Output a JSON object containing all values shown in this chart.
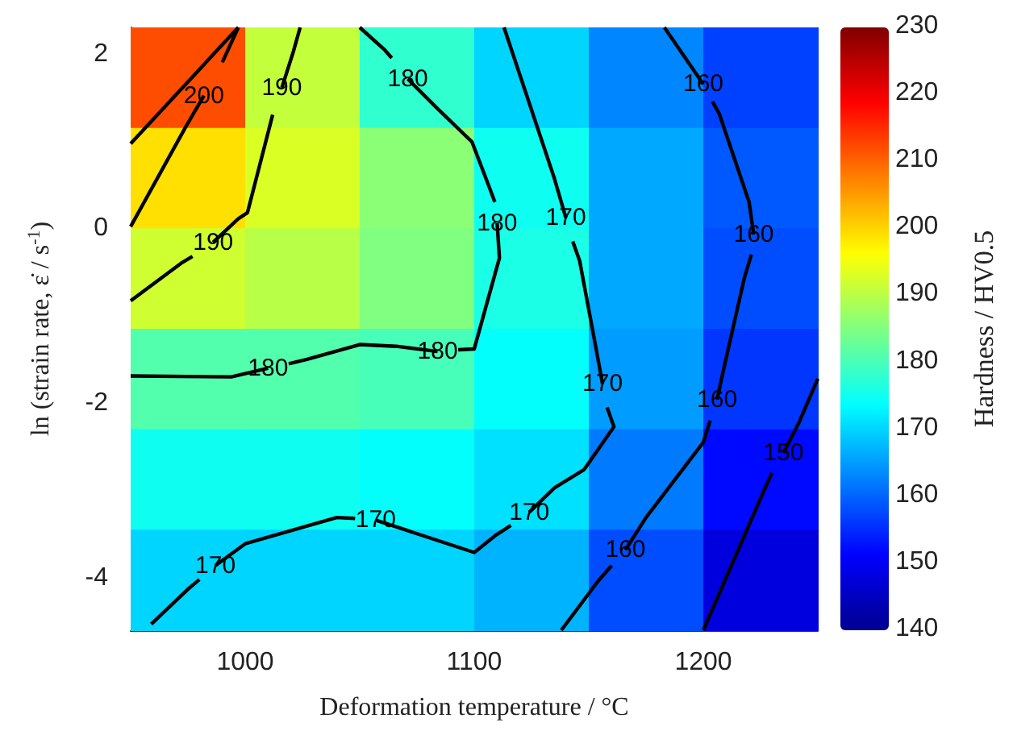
{
  "chart_data": {
    "type": "heatmap",
    "xlabel": "Deformation temperature / °C",
    "ylabel": "ln (strain rate, ε̇ / s$^{-1}$)",
    "clabel": "Hardness / HV0.5",
    "x": [
      975,
      1025,
      1075,
      1125,
      1175,
      1225
    ],
    "y": [
      1.725,
      0.575,
      -0.575,
      -1.725,
      -2.875,
      -4.025
    ],
    "cells": [
      [
        212,
        191,
        178,
        170,
        163,
        157
      ],
      [
        199,
        193,
        186,
        175,
        166,
        159
      ],
      [
        192,
        190,
        185,
        176,
        166,
        158
      ],
      [
        181,
        181,
        180,
        174,
        165,
        156
      ],
      [
        175,
        175,
        174,
        171,
        162,
        152
      ],
      [
        170,
        170,
        170,
        167,
        158,
        148
      ]
    ],
    "xlim": [
      950,
      1250
    ],
    "xticks": [
      1000,
      1100,
      1200
    ],
    "ylim": [
      -4.6,
      2.3
    ],
    "yticks": [
      -4,
      -2,
      0,
      2
    ],
    "clim": [
      140,
      230
    ],
    "cticks": [
      140,
      150,
      160,
      170,
      180,
      190,
      200,
      210,
      220,
      230
    ],
    "marker": "none",
    "series": [
      {
        "type": "line",
        "color": "#000000",
        "x": [
          950,
          997
        ],
        "values": [
          0.97,
          2.3
        ],
        "value_labels": [
          null,
          null
        ]
      },
      {
        "type": "line",
        "name": "200",
        "color": "#000000",
        "x": [
          950,
          974,
          982
        ],
        "values": [
          0.02,
          1.16,
          1.52
        ]
      },
      {
        "type": "line",
        "color": "#000000",
        "x": [
          990,
          997
        ],
        "values": [
          1.9,
          2.3
        ]
      },
      {
        "type": "line",
        "name": "190",
        "color": "#000000",
        "x": [
          1024,
          1021,
          1016
        ],
        "values": [
          2.3,
          2.02,
          1.61
        ]
      },
      {
        "type": "line",
        "name": "190",
        "color": "#000000",
        "x": [
          1012,
          1001,
          997,
          986
        ],
        "values": [
          1.3,
          0.18,
          0.11,
          -0.16
        ]
      },
      {
        "type": "line",
        "color": "#000000",
        "x": [
          977,
          972,
          950
        ],
        "values": [
          -0.32,
          -0.4,
          -0.83
        ]
      },
      {
        "type": "line",
        "name": "180",
        "color": "#000000",
        "x": [
          950,
          994,
          1010
        ],
        "values": [
          -1.69,
          -1.7,
          -1.6
        ]
      },
      {
        "type": "line",
        "name": "180",
        "color": "#000000",
        "x": [
          1019,
          1027,
          1050,
          1066,
          1084
        ],
        "values": [
          -1.55,
          -1.5,
          -1.33,
          -1.35,
          -1.41
        ]
      },
      {
        "type": "line",
        "name": "180",
        "color": "#000000",
        "x": [
          1093,
          1100,
          1111,
          1110
        ],
        "values": [
          -1.39,
          -1.38,
          -0.34,
          0.06
        ]
      },
      {
        "type": "line",
        "name": "180",
        "color": "#000000",
        "x": [
          1109,
          1106,
          1099,
          1084,
          1071
        ],
        "values": [
          0.3,
          0.51,
          0.99,
          1.37,
          1.71
        ]
      },
      {
        "type": "line",
        "color": "#000000",
        "x": [
          1064,
          1061,
          1050
        ],
        "values": [
          1.95,
          2.04,
          2.3
        ]
      },
      {
        "type": "line",
        "name": "170",
        "color": "#000000",
        "x": [
          1113,
          1135,
          1140
        ],
        "values": [
          2.3,
          0.57,
          0.12
        ]
      },
      {
        "type": "line",
        "name": "170",
        "color": "#000000",
        "x": [
          1143,
          1146,
          1153,
          1156
        ],
        "values": [
          -0.15,
          -0.37,
          -1.35,
          -1.78
        ]
      },
      {
        "type": "line",
        "name": "170",
        "color": "#000000",
        "x": [
          1158,
          1161,
          1148,
          1135,
          1124
        ],
        "values": [
          -2.05,
          -2.27,
          -2.76,
          -2.97,
          -3.25
        ]
      },
      {
        "type": "line",
        "name": "170",
        "color": "#000000",
        "x": [
          1116,
          1109,
          1100,
          1071,
          1057
        ],
        "values": [
          -3.4,
          -3.52,
          -3.71,
          -3.46,
          -3.34
        ]
      },
      {
        "type": "line",
        "name": "170",
        "color": "#000000",
        "x": [
          1048,
          1040,
          1000,
          987
        ],
        "values": [
          -3.32,
          -3.31,
          -3.61,
          -3.86
        ]
      },
      {
        "type": "line",
        "color": "#000000",
        "x": [
          980,
          975,
          959
        ],
        "values": [
          -4.02,
          -4.13,
          -4.53
        ]
      },
      {
        "type": "line",
        "name": "160",
        "color": "#000000",
        "x": [
          1183,
          1200
        ],
        "values": [
          2.3,
          1.65
        ]
      },
      {
        "type": "line",
        "name": "160",
        "color": "#000000",
        "x": [
          1204,
          1207,
          1220,
          1222
        ],
        "values": [
          1.45,
          1.31,
          0.3,
          -0.07
        ]
      },
      {
        "type": "line",
        "name": "160",
        "color": "#000000",
        "x": [
          1221,
          1218,
          1209,
          1206
        ],
        "values": [
          -0.3,
          -0.56,
          -1.6,
          -1.96
        ]
      },
      {
        "type": "line",
        "name": "160",
        "color": "#000000",
        "x": [
          1203,
          1200,
          1175,
          1166
        ],
        "values": [
          -2.2,
          -2.45,
          -3.31,
          -3.68
        ]
      },
      {
        "type": "line",
        "color": "#000000",
        "x": [
          1160,
          1154,
          1138
        ],
        "values": [
          -3.86,
          -4.04,
          -4.6
        ]
      },
      {
        "type": "line",
        "name": "150",
        "color": "#000000",
        "x": [
          1250,
          1242,
          1235
        ],
        "values": [
          -1.72,
          -2.21,
          -2.57
        ]
      },
      {
        "type": "line",
        "color": "#000000",
        "x": [
          1230,
          1227,
          1200
        ],
        "values": [
          -2.8,
          -2.97,
          -4.6
        ]
      }
    ]
  }
}
